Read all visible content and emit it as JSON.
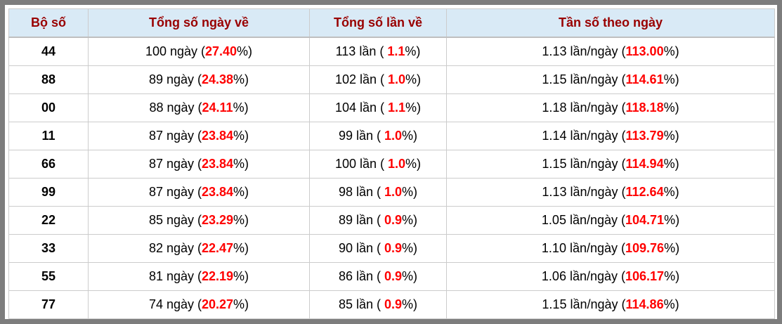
{
  "colors": {
    "frame": "#7d7d7d",
    "header_bg": "#d9eaf6",
    "header_text": "#990000",
    "highlight": "#ff0000",
    "grid": "#cccccc",
    "header_grid": "#bfbfbf",
    "text": "#000000"
  },
  "table": {
    "headers": [
      "Bộ số",
      "Tổng số ngày về",
      "Tổng số lần về",
      "Tần số theo ngày"
    ],
    "cell_names": [
      "pair-cell",
      "days-cell",
      "times-cell",
      "frequency-cell"
    ],
    "rows": [
      {
        "cells": [
          [
            {
              "text": "44"
            }
          ],
          [
            {
              "text": "100 ngày ("
            },
            {
              "text": "27.40",
              "style": "red"
            },
            {
              "text": "%)"
            }
          ],
          [
            {
              "text": "113 lần ( "
            },
            {
              "text": "1.1",
              "style": "red"
            },
            {
              "text": "%)"
            }
          ],
          [
            {
              "text": "1.13 lần/ngày ("
            },
            {
              "text": "113.00",
              "style": "red"
            },
            {
              "text": "%)"
            }
          ]
        ]
      },
      {
        "cells": [
          [
            {
              "text": "88"
            }
          ],
          [
            {
              "text": "89 ngày ("
            },
            {
              "text": "24.38",
              "style": "red"
            },
            {
              "text": "%)"
            }
          ],
          [
            {
              "text": "102 lần ( "
            },
            {
              "text": "1.0",
              "style": "red"
            },
            {
              "text": "%)"
            }
          ],
          [
            {
              "text": "1.15 lần/ngày ("
            },
            {
              "text": "114.61",
              "style": "red"
            },
            {
              "text": "%)"
            }
          ]
        ]
      },
      {
        "cells": [
          [
            {
              "text": "00"
            }
          ],
          [
            {
              "text": "88 ngày ("
            },
            {
              "text": "24.11",
              "style": "red"
            },
            {
              "text": "%)"
            }
          ],
          [
            {
              "text": "104 lần ( "
            },
            {
              "text": "1.1",
              "style": "red"
            },
            {
              "text": "%)"
            }
          ],
          [
            {
              "text": "1.18 lần/ngày ("
            },
            {
              "text": "118.18",
              "style": "red"
            },
            {
              "text": "%)"
            }
          ]
        ]
      },
      {
        "cells": [
          [
            {
              "text": "11"
            }
          ],
          [
            {
              "text": "87 ngày ("
            },
            {
              "text": "23.84",
              "style": "red"
            },
            {
              "text": "%)"
            }
          ],
          [
            {
              "text": "99 lần ( "
            },
            {
              "text": "1.0",
              "style": "red"
            },
            {
              "text": "%)"
            }
          ],
          [
            {
              "text": "1.14 lần/ngày ("
            },
            {
              "text": "113.79",
              "style": "red"
            },
            {
              "text": "%)"
            }
          ]
        ]
      },
      {
        "cells": [
          [
            {
              "text": "66"
            }
          ],
          [
            {
              "text": "87 ngày ("
            },
            {
              "text": "23.84",
              "style": "red"
            },
            {
              "text": "%)"
            }
          ],
          [
            {
              "text": "100 lần ( "
            },
            {
              "text": "1.0",
              "style": "red"
            },
            {
              "text": "%)"
            }
          ],
          [
            {
              "text": "1.15 lần/ngày ("
            },
            {
              "text": "114.94",
              "style": "red"
            },
            {
              "text": "%)"
            }
          ]
        ]
      },
      {
        "cells": [
          [
            {
              "text": "99"
            }
          ],
          [
            {
              "text": "87 ngày ("
            },
            {
              "text": "23.84",
              "style": "red"
            },
            {
              "text": "%)"
            }
          ],
          [
            {
              "text": "98 lần ( "
            },
            {
              "text": "1.0",
              "style": "red"
            },
            {
              "text": "%)"
            }
          ],
          [
            {
              "text": "1.13 lần/ngày ("
            },
            {
              "text": "112.64",
              "style": "red"
            },
            {
              "text": "%)"
            }
          ]
        ]
      },
      {
        "cells": [
          [
            {
              "text": "22"
            }
          ],
          [
            {
              "text": "85 ngày ("
            },
            {
              "text": "23.29",
              "style": "red"
            },
            {
              "text": "%)"
            }
          ],
          [
            {
              "text": "89 lần ( "
            },
            {
              "text": "0.9",
              "style": "red"
            },
            {
              "text": "%)"
            }
          ],
          [
            {
              "text": "1.05 lần/ngày ("
            },
            {
              "text": "104.71",
              "style": "red"
            },
            {
              "text": "%)"
            }
          ]
        ]
      },
      {
        "cells": [
          [
            {
              "text": "33"
            }
          ],
          [
            {
              "text": "82 ngày ("
            },
            {
              "text": "22.47",
              "style": "red"
            },
            {
              "text": "%)"
            }
          ],
          [
            {
              "text": "90 lần ( "
            },
            {
              "text": "0.9",
              "style": "red"
            },
            {
              "text": "%)"
            }
          ],
          [
            {
              "text": "1.10 lần/ngày ("
            },
            {
              "text": "109.76",
              "style": "red"
            },
            {
              "text": "%)"
            }
          ]
        ]
      },
      {
        "cells": [
          [
            {
              "text": "55"
            }
          ],
          [
            {
              "text": "81 ngày ("
            },
            {
              "text": "22.19",
              "style": "red"
            },
            {
              "text": "%)"
            }
          ],
          [
            {
              "text": "86 lần ( "
            },
            {
              "text": "0.9",
              "style": "red"
            },
            {
              "text": "%)"
            }
          ],
          [
            {
              "text": "1.06 lần/ngày ("
            },
            {
              "text": "106.17",
              "style": "red"
            },
            {
              "text": "%)"
            }
          ]
        ]
      },
      {
        "cells": [
          [
            {
              "text": "77"
            }
          ],
          [
            {
              "text": "74 ngày ("
            },
            {
              "text": "20.27",
              "style": "red"
            },
            {
              "text": "%)"
            }
          ],
          [
            {
              "text": "85 lần ( "
            },
            {
              "text": "0.9",
              "style": "red"
            },
            {
              "text": "%)"
            }
          ],
          [
            {
              "text": "1.15 lần/ngày ("
            },
            {
              "text": "114.86",
              "style": "red"
            },
            {
              "text": "%)"
            }
          ]
        ]
      }
    ]
  }
}
